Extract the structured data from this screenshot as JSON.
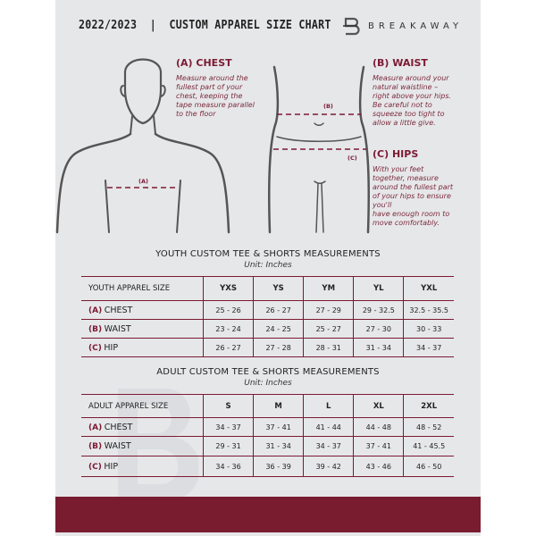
{
  "header": {
    "title": "2022/2023  |  CUSTOM APPAREL SIZE CHART",
    "brand": "BREAKAWAY",
    "logo_letter": "B"
  },
  "guide": {
    "chest": {
      "title": "(A) CHEST",
      "text": [
        "Measure around the",
        "fullest part of your",
        "chest, keeping the",
        "tape measure parallel",
        "to the floor"
      ],
      "marker": "(A)"
    },
    "waist": {
      "title": "(B) WAIST",
      "text": [
        "Measure around your",
        "natural waistline –",
        "right above your hips.",
        "Be careful not to",
        "squeeze too tight to",
        "allow a little give."
      ],
      "marker": "(B)"
    },
    "hips": {
      "title": "(C) HIPS",
      "text": [
        "With your feet",
        "together, measure",
        "around the fullest part",
        "of your hips to ensure",
        "you'll",
        "have enough room to",
        "move comfortably."
      ],
      "marker": "(C)"
    }
  },
  "youth": {
    "title": "YOUTH CUSTOM TEE & SHORTS MEASUREMENTS",
    "unit": "Unit: Inches",
    "header": "YOUTH APPAREL SIZE",
    "sizes": [
      "YXS",
      "YS",
      "YM",
      "YL",
      "YXL"
    ],
    "rows": [
      {
        "label": "(A)",
        "name": "CHEST",
        "values": [
          "25 - 26",
          "26 - 27",
          "27 - 29",
          "29 - 32.5",
          "32.5 - 35.5"
        ]
      },
      {
        "label": "(B)",
        "name": "WAIST",
        "values": [
          "23 - 24",
          "24 - 25",
          "25 - 27",
          "27 - 30",
          "30 - 33"
        ]
      },
      {
        "label": "(C)",
        "name": "HIP",
        "values": [
          "26 - 27",
          "27 - 28",
          "28 - 31",
          "31 - 34",
          "34 - 37"
        ]
      }
    ]
  },
  "adult": {
    "title": "ADULT CUSTOM TEE & SHORTS MEASUREMENTS",
    "unit": "Unit: Inches",
    "header": "ADULT APPAREL SIZE",
    "sizes": [
      "S",
      "M",
      "L",
      "XL",
      "2XL"
    ],
    "rows": [
      {
        "label": "(A)",
        "name": "CHEST",
        "values": [
          "34 - 37",
          "37 - 41",
          "41 - 44",
          "44 - 48",
          "48 - 52"
        ]
      },
      {
        "label": "(B)",
        "name": "WAIST",
        "values": [
          "29 - 31",
          "31 - 34",
          "34 - 37",
          "37 - 41",
          "41 - 45.5"
        ]
      },
      {
        "label": "(C)",
        "name": "HIP",
        "values": [
          "34 - 36",
          "36 - 39",
          "39 - 42",
          "43 - 46",
          "46 - 50"
        ]
      }
    ]
  },
  "colors": {
    "accent": "#7a1c30",
    "background": "#e6e7e9"
  }
}
